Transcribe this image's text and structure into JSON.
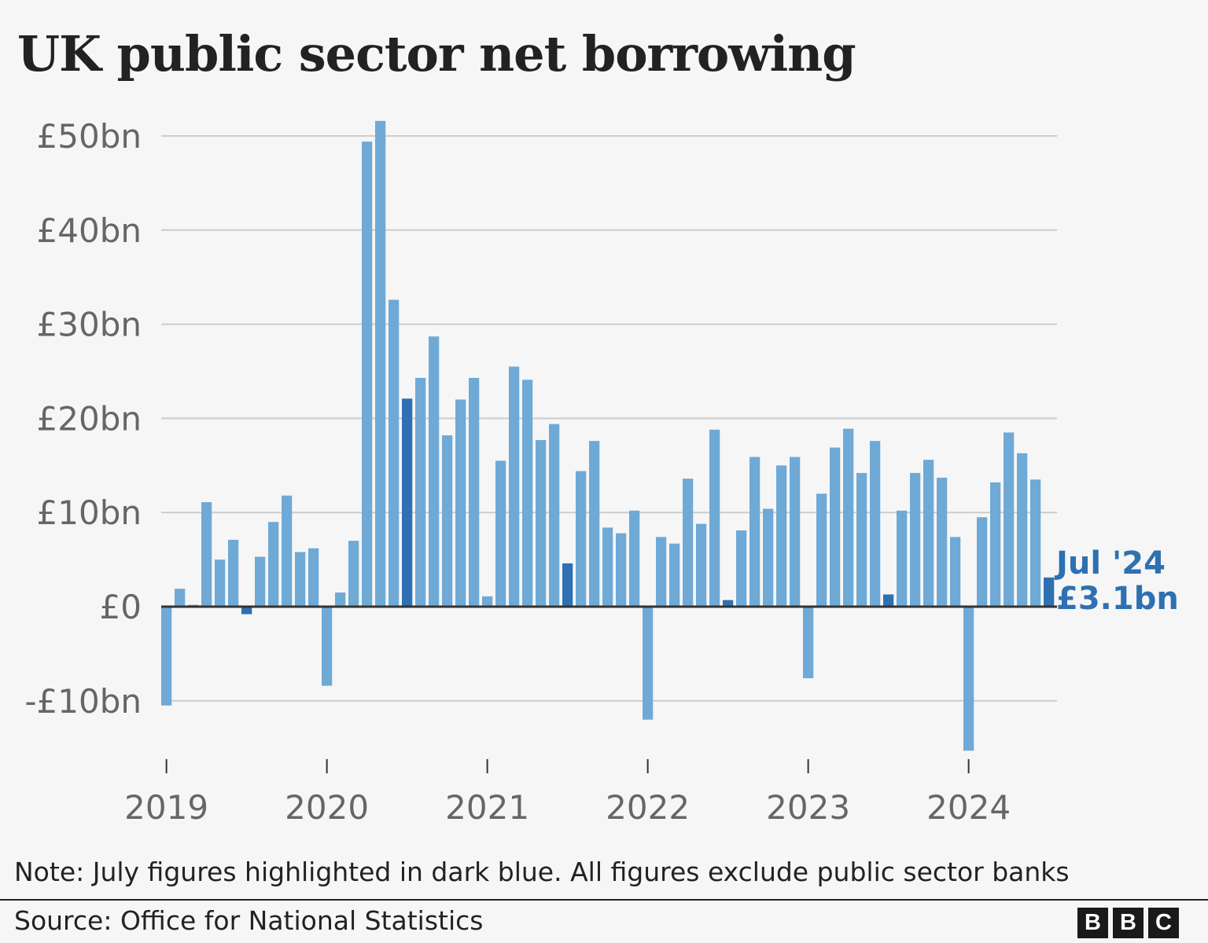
{
  "chart_data": {
    "type": "bar",
    "title": "UK public sector net borrowing",
    "xlabel": "",
    "ylabel": "",
    "ylim": [
      -17,
      52
    ],
    "y_ticks": [
      {
        "value": 50,
        "label": "£50bn"
      },
      {
        "value": 40,
        "label": "£40bn"
      },
      {
        "value": 30,
        "label": "£30bn"
      },
      {
        "value": 20,
        "label": "£20bn"
      },
      {
        "value": 10,
        "label": "£10bn"
      },
      {
        "value": 0,
        "label": "£0"
      },
      {
        "value": -10,
        "label": "-£10bn"
      }
    ],
    "x_ticks": [
      {
        "index": 0,
        "label": "2019"
      },
      {
        "index": 12,
        "label": "2020"
      },
      {
        "index": 24,
        "label": "2021"
      },
      {
        "index": 36,
        "label": "2022"
      },
      {
        "index": 48,
        "label": "2023"
      },
      {
        "index": 60,
        "label": "2024"
      }
    ],
    "grid": true,
    "highlight_month": "July",
    "series": [
      {
        "values": [
          -10.5,
          1.9,
          0.2,
          11.1,
          5.0,
          7.1,
          -0.8,
          5.3,
          9.0,
          11.8,
          5.8,
          6.2,
          -8.4,
          1.5,
          7.0,
          49.4,
          51.6,
          32.6,
          22.1,
          24.3,
          28.7,
          18.2,
          22.0,
          24.3,
          1.1,
          15.5,
          25.5,
          24.1,
          17.7,
          19.4,
          4.6,
          14.4,
          17.6,
          8.4,
          7.8,
          10.2,
          -12.0,
          7.4,
          6.7,
          13.6,
          8.8,
          18.8,
          0.7,
          8.1,
          15.9,
          10.4,
          15.0,
          15.9,
          -7.6,
          12.0,
          16.9,
          18.9,
          14.2,
          17.6,
          1.3,
          10.2,
          14.2,
          15.6,
          13.7,
          7.4,
          -15.3,
          9.5,
          13.2,
          18.5,
          16.3,
          13.5,
          3.1
        ]
      }
    ],
    "colors": {
      "bar": "#6fa9d6",
      "highlight": "#2e70b2",
      "grid": "#cccccc",
      "baseline": "#333333",
      "axis_text": "#666666"
    },
    "callout": {
      "period": "Jul '24",
      "value_label": "£3.1bn"
    }
  },
  "note": "Note: July figures highlighted in dark blue. All figures exclude public sector banks",
  "source": "Source: Office for National Statistics",
  "logo": [
    "B",
    "B",
    "C"
  ]
}
